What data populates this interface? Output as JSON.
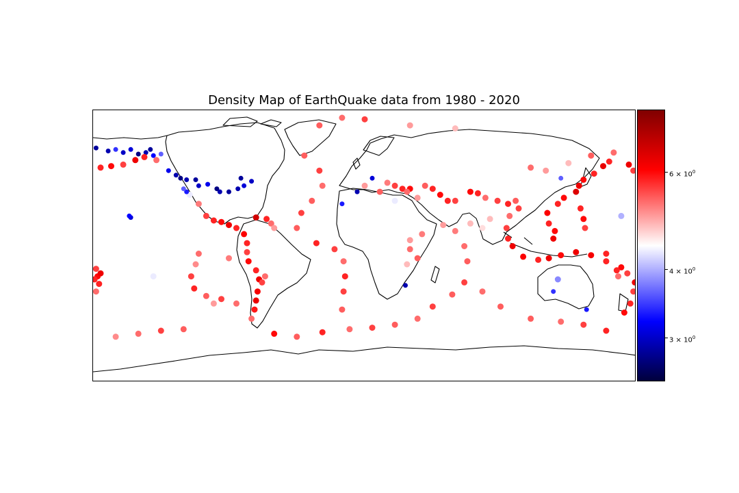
{
  "title": "Density Map of EarthQuake data from 1980 - 2020",
  "colorbar": {
    "scale": "log",
    "colormap": "seismic",
    "range": [
      2.5,
      8.5
    ],
    "ticks": [
      {
        "value": 6,
        "base": "6 × 10",
        "exp": "0"
      },
      {
        "value": 4,
        "base": "4 × 10",
        "exp": "0"
      },
      {
        "value": 3,
        "base": "3 × 10",
        "exp": "0"
      }
    ]
  },
  "chart_data": {
    "type": "scatter",
    "projection": "equirectangular",
    "title": "Density Map of EarthQuake data from 1980 - 2020",
    "xlim": [
      -180,
      180
    ],
    "ylim": [
      -90,
      90
    ],
    "color_scale": "log",
    "color_range": [
      2.5,
      8.5
    ],
    "points": [
      {
        "lon": -178,
        "lat": 65,
        "v": 2.9
      },
      {
        "lon": -170,
        "lat": 63,
        "v": 3.0
      },
      {
        "lon": -160,
        "lat": 62,
        "v": 3.1
      },
      {
        "lon": -150,
        "lat": 61,
        "v": 2.8
      },
      {
        "lon": -145,
        "lat": 62,
        "v": 3.0
      },
      {
        "lon": -140,
        "lat": 60,
        "v": 3.4
      },
      {
        "lon": -135,
        "lat": 61,
        "v": 3.8
      },
      {
        "lon": -142,
        "lat": 64,
        "v": 2.9
      },
      {
        "lon": -155,
        "lat": 64,
        "v": 3.2
      },
      {
        "lon": -165,
        "lat": 64,
        "v": 3.6
      },
      {
        "lon": -175,
        "lat": 52,
        "v": 6.0
      },
      {
        "lon": -168,
        "lat": 53,
        "v": 6.2
      },
      {
        "lon": -160,
        "lat": 54,
        "v": 5.8
      },
      {
        "lon": -152,
        "lat": 57,
        "v": 6.5
      },
      {
        "lon": -146,
        "lat": 59,
        "v": 6.0
      },
      {
        "lon": -138,
        "lat": 57,
        "v": 5.5
      },
      {
        "lon": -130,
        "lat": 50,
        "v": 3.3
      },
      {
        "lon": -125,
        "lat": 47,
        "v": 3.0
      },
      {
        "lon": -122,
        "lat": 45,
        "v": 2.8
      },
      {
        "lon": -118,
        "lat": 44,
        "v": 3.0
      },
      {
        "lon": -112,
        "lat": 44,
        "v": 2.9
      },
      {
        "lon": -110,
        "lat": 40,
        "v": 3.1
      },
      {
        "lon": -104,
        "lat": 41,
        "v": 3.3
      },
      {
        "lon": -98,
        "lat": 38,
        "v": 2.8
      },
      {
        "lon": -96,
        "lat": 36,
        "v": 3.0
      },
      {
        "lon": -90,
        "lat": 36,
        "v": 2.9
      },
      {
        "lon": -84,
        "lat": 38,
        "v": 3.0
      },
      {
        "lon": -80,
        "lat": 40,
        "v": 3.2
      },
      {
        "lon": -75,
        "lat": 43,
        "v": 3.1
      },
      {
        "lon": -82,
        "lat": 45,
        "v": 2.9
      },
      {
        "lon": -116,
        "lat": 34,
        "v": 4.5
      },
      {
        "lon": -118,
        "lat": 36,
        "v": 3.5
      },
      {
        "lon": -120,
        "lat": 38,
        "v": 3.8
      },
      {
        "lon": -110,
        "lat": 28,
        "v": 5.4
      },
      {
        "lon": -105,
        "lat": 20,
        "v": 5.8
      },
      {
        "lon": -100,
        "lat": 17,
        "v": 6.0
      },
      {
        "lon": -95,
        "lat": 16,
        "v": 6.2
      },
      {
        "lon": -90,
        "lat": 14,
        "v": 6.5
      },
      {
        "lon": -85,
        "lat": 12,
        "v": 6.0
      },
      {
        "lon": -80,
        "lat": 8,
        "v": 6.3
      },
      {
        "lon": -78,
        "lat": 2,
        "v": 6.0
      },
      {
        "lon": -78,
        "lat": -4,
        "v": 5.8
      },
      {
        "lon": -77,
        "lat": -10,
        "v": 6.2
      },
      {
        "lon": -72,
        "lat": -16,
        "v": 6.0
      },
      {
        "lon": -70,
        "lat": -22,
        "v": 6.5
      },
      {
        "lon": -71,
        "lat": -30,
        "v": 6.4
      },
      {
        "lon": -72,
        "lat": -36,
        "v": 6.6
      },
      {
        "lon": -73,
        "lat": -42,
        "v": 6.1
      },
      {
        "lon": -75,
        "lat": -48,
        "v": 5.5
      },
      {
        "lon": -68,
        "lat": -24,
        "v": 5.8
      },
      {
        "lon": -66,
        "lat": -20,
        "v": 5.5
      },
      {
        "lon": -65,
        "lat": 18,
        "v": 6.0
      },
      {
        "lon": -62,
        "lat": 15,
        "v": 5.5
      },
      {
        "lon": -72,
        "lat": 19,
        "v": 7.0
      },
      {
        "lon": -60,
        "lat": 12,
        "v": 5.2
      },
      {
        "lon": -155,
        "lat": 19,
        "v": 3.2
      },
      {
        "lon": -156,
        "lat": 20,
        "v": 3.4
      },
      {
        "lon": -178,
        "lat": -15,
        "v": 5.8
      },
      {
        "lon": -177,
        "lat": -20,
        "v": 6.2
      },
      {
        "lon": -176,
        "lat": -25,
        "v": 6.0
      },
      {
        "lon": -178,
        "lat": -30,
        "v": 5.5
      },
      {
        "lon": -175,
        "lat": -18,
        "v": 6.5
      },
      {
        "lon": -179,
        "lat": -22,
        "v": 6.0
      },
      {
        "lon": -110,
        "lat": -5,
        "v": 5.5
      },
      {
        "lon": -112,
        "lat": -12,
        "v": 5.3
      },
      {
        "lon": -115,
        "lat": -20,
        "v": 5.8
      },
      {
        "lon": -113,
        "lat": -28,
        "v": 6.0
      },
      {
        "lon": -105,
        "lat": -33,
        "v": 5.6
      },
      {
        "lon": -95,
        "lat": -35,
        "v": 5.8
      },
      {
        "lon": -85,
        "lat": -38,
        "v": 5.5
      },
      {
        "lon": -120,
        "lat": -55,
        "v": 5.6
      },
      {
        "lon": -135,
        "lat": -56,
        "v": 5.8
      },
      {
        "lon": -150,
        "lat": -58,
        "v": 5.5
      },
      {
        "lon": -165,
        "lat": -60,
        "v": 5.3
      },
      {
        "lon": -40,
        "lat": 60,
        "v": 5.6
      },
      {
        "lon": -30,
        "lat": 50,
        "v": 5.8
      },
      {
        "lon": -28,
        "lat": 40,
        "v": 5.5
      },
      {
        "lon": -35,
        "lat": 30,
        "v": 5.6
      },
      {
        "lon": -42,
        "lat": 22,
        "v": 5.8
      },
      {
        "lon": -45,
        "lat": 12,
        "v": 5.6
      },
      {
        "lon": -32,
        "lat": 2,
        "v": 6.0
      },
      {
        "lon": -20,
        "lat": -2,
        "v": 5.8
      },
      {
        "lon": -14,
        "lat": -10,
        "v": 5.5
      },
      {
        "lon": -13,
        "lat": -20,
        "v": 6.0
      },
      {
        "lon": -14,
        "lat": -30,
        "v": 5.8
      },
      {
        "lon": -15,
        "lat": -42,
        "v": 5.6
      },
      {
        "lon": -10,
        "lat": -55,
        "v": 5.5
      },
      {
        "lon": -28,
        "lat": -57,
        "v": 6.0
      },
      {
        "lon": -45,
        "lat": -60,
        "v": 5.6
      },
      {
        "lon": -60,
        "lat": -58,
        "v": 6.2
      },
      {
        "lon": 5,
        "lat": -54,
        "v": 5.8
      },
      {
        "lon": 20,
        "lat": -52,
        "v": 5.6
      },
      {
        "lon": 35,
        "lat": -48,
        "v": 5.5
      },
      {
        "lon": 45,
        "lat": -40,
        "v": 5.8
      },
      {
        "lon": 58,
        "lat": -32,
        "v": 5.6
      },
      {
        "lon": 66,
        "lat": -24,
        "v": 5.8
      },
      {
        "lon": 68,
        "lat": -10,
        "v": 5.6
      },
      {
        "lon": 66,
        "lat": 0,
        "v": 5.5
      },
      {
        "lon": 60,
        "lat": 10,
        "v": 5.4
      },
      {
        "lon": 52,
        "lat": 14,
        "v": 5.2
      },
      {
        "lon": 78,
        "lat": -30,
        "v": 5.5
      },
      {
        "lon": 90,
        "lat": -40,
        "v": 5.6
      },
      {
        "lon": 110,
        "lat": -48,
        "v": 5.6
      },
      {
        "lon": 130,
        "lat": -50,
        "v": 5.5
      },
      {
        "lon": 145,
        "lat": -52,
        "v": 5.8
      },
      {
        "lon": 160,
        "lat": -56,
        "v": 6.0
      },
      {
        "lon": 172,
        "lat": -44,
        "v": 6.2
      },
      {
        "lon": 176,
        "lat": -38,
        "v": 6.0
      },
      {
        "lon": 178,
        "lat": -30,
        "v": 5.8
      },
      {
        "lon": 179,
        "lat": -24,
        "v": 6.5
      },
      {
        "lon": 168,
        "lat": -20,
        "v": 5.5
      },
      {
        "lon": 160,
        "lat": -10,
        "v": 6.0
      },
      {
        "lon": 150,
        "lat": -6,
        "v": 6.4
      },
      {
        "lon": 140,
        "lat": -4,
        "v": 6.5
      },
      {
        "lon": 130,
        "lat": -6,
        "v": 6.2
      },
      {
        "lon": 122,
        "lat": -8,
        "v": 6.5
      },
      {
        "lon": 115,
        "lat": -9,
        "v": 6.0
      },
      {
        "lon": 105,
        "lat": -7,
        "v": 6.3
      },
      {
        "lon": 98,
        "lat": 0,
        "v": 6.5
      },
      {
        "lon": 95,
        "lat": 5,
        "v": 6.0
      },
      {
        "lon": 94,
        "lat": 12,
        "v": 5.8
      },
      {
        "lon": 96,
        "lat": 20,
        "v": 5.5
      },
      {
        "lon": 125,
        "lat": 5,
        "v": 6.5
      },
      {
        "lon": 126,
        "lat": 10,
        "v": 6.2
      },
      {
        "lon": 122,
        "lat": 15,
        "v": 6.0
      },
      {
        "lon": 121,
        "lat": 22,
        "v": 6.3
      },
      {
        "lon": 128,
        "lat": 28,
        "v": 6.0
      },
      {
        "lon": 132,
        "lat": 32,
        "v": 6.2
      },
      {
        "lon": 140,
        "lat": 36,
        "v": 6.8
      },
      {
        "lon": 142,
        "lat": 40,
        "v": 6.5
      },
      {
        "lon": 145,
        "lat": 44,
        "v": 6.2
      },
      {
        "lon": 152,
        "lat": 48,
        "v": 6.0
      },
      {
        "lon": 158,
        "lat": 53,
        "v": 6.6
      },
      {
        "lon": 162,
        "lat": 56,
        "v": 6.0
      },
      {
        "lon": 143,
        "lat": 25,
        "v": 6.0
      },
      {
        "lon": 145,
        "lat": 18,
        "v": 6.2
      },
      {
        "lon": 146,
        "lat": 12,
        "v": 5.8
      },
      {
        "lon": 45,
        "lat": 38,
        "v": 6.0
      },
      {
        "lon": 50,
        "lat": 34,
        "v": 6.2
      },
      {
        "lon": 55,
        "lat": 30,
        "v": 6.0
      },
      {
        "lon": 60,
        "lat": 30,
        "v": 5.8
      },
      {
        "lon": 70,
        "lat": 36,
        "v": 6.2
      },
      {
        "lon": 75,
        "lat": 35,
        "v": 6.0
      },
      {
        "lon": 80,
        "lat": 32,
        "v": 5.5
      },
      {
        "lon": 88,
        "lat": 30,
        "v": 5.8
      },
      {
        "lon": 95,
        "lat": 28,
        "v": 6.0
      },
      {
        "lon": 100,
        "lat": 30,
        "v": 5.6
      },
      {
        "lon": 102,
        "lat": 25,
        "v": 5.8
      },
      {
        "lon": 30,
        "lat": 38,
        "v": 6.2
      },
      {
        "lon": 25,
        "lat": 38,
        "v": 6.0
      },
      {
        "lon": 20,
        "lat": 40,
        "v": 5.8
      },
      {
        "lon": 15,
        "lat": 42,
        "v": 5.4
      },
      {
        "lon": 28,
        "lat": 36,
        "v": 5.5
      },
      {
        "lon": 35,
        "lat": 32,
        "v": 5.2
      },
      {
        "lon": 40,
        "lat": 40,
        "v": 5.6
      },
      {
        "lon": 30,
        "lat": -2,
        "v": 5.5
      },
      {
        "lon": 35,
        "lat": -8,
        "v": 5.6
      },
      {
        "lon": 38,
        "lat": 8,
        "v": 5.4
      },
      {
        "lon": 30,
        "lat": 4,
        "v": 5.2
      },
      {
        "lon": 28,
        "lat": -12,
        "v": 5.0
      },
      {
        "lon": 27,
        "lat": -26,
        "v": 3.0
      },
      {
        "lon": -5,
        "lat": 36,
        "v": 3.0
      },
      {
        "lon": 5,
        "lat": 45,
        "v": 3.2
      },
      {
        "lon": -15,
        "lat": 28,
        "v": 3.5
      },
      {
        "lon": 160,
        "lat": -5,
        "v": 6.0
      },
      {
        "lon": 170,
        "lat": -14,
        "v": 6.2
      },
      {
        "lon": 174,
        "lat": -18,
        "v": 5.8
      },
      {
        "lon": 167,
        "lat": -16,
        "v": 6.0
      },
      {
        "lon": 150,
        "lat": 60,
        "v": 5.6
      },
      {
        "lon": 165,
        "lat": 62,
        "v": 5.5
      },
      {
        "lon": 175,
        "lat": 54,
        "v": 6.5
      },
      {
        "lon": 120,
        "lat": 50,
        "v": 5.2
      },
      {
        "lon": 110,
        "lat": 52,
        "v": 5.5
      },
      {
        "lon": 130,
        "lat": 45,
        "v": 3.8
      },
      {
        "lon": 135,
        "lat": 55,
        "v": 5.0
      },
      {
        "lon": -30,
        "lat": 80,
        "v": 5.6
      },
      {
        "lon": -15,
        "lat": 85,
        "v": 5.5
      },
      {
        "lon": 0,
        "lat": 84,
        "v": 5.8
      },
      {
        "lon": 30,
        "lat": 80,
        "v": 5.2
      },
      {
        "lon": 60,
        "lat": 78,
        "v": 5.0
      },
      {
        "lon": 125,
        "lat": -30,
        "v": 3.6
      },
      {
        "lon": 128,
        "lat": -22,
        "v": 4.0
      },
      {
        "lon": 147,
        "lat": -42,
        "v": 3.5
      },
      {
        "lon": 70,
        "lat": 15,
        "v": 5.0
      },
      {
        "lon": 78,
        "lat": 12,
        "v": 4.8
      },
      {
        "lon": 83,
        "lat": 18,
        "v": 5.0
      },
      {
        "lon": 0,
        "lat": 40,
        "v": 5.2
      },
      {
        "lon": 10,
        "lat": 36,
        "v": 5.6
      },
      {
        "lon": 20,
        "lat": 30,
        "v": 4.5
      },
      {
        "lon": -90,
        "lat": -8,
        "v": 5.4
      },
      {
        "lon": -100,
        "lat": -38,
        "v": 5.2
      },
      {
        "lon": 170,
        "lat": 20,
        "v": 4.2
      },
      {
        "lon": -140,
        "lat": -20,
        "v": 4.5
      },
      {
        "lon": 178,
        "lat": 50,
        "v": 5.8
      }
    ]
  }
}
